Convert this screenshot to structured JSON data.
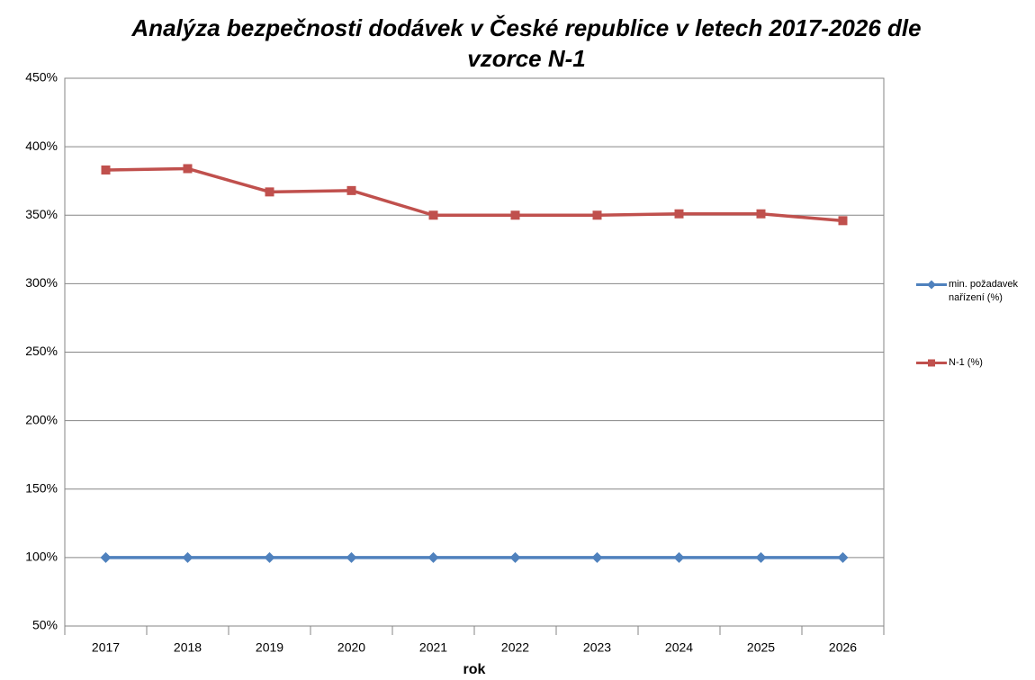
{
  "chart_data": {
    "type": "line",
    "title": "Analýza bezpečnosti dodávek v České republice v letech 2017-2026 dle vzorce N-1",
    "x_label": "rok",
    "categories": [
      "2017",
      "2018",
      "2019",
      "2020",
      "2021",
      "2022",
      "2023",
      "2024",
      "2025",
      "2026"
    ],
    "series": [
      {
        "name": "min. požadavek nařízení (%)",
        "color": "#4f81bd",
        "marker": "diamond",
        "values": [
          100,
          100,
          100,
          100,
          100,
          100,
          100,
          100,
          100,
          100
        ]
      },
      {
        "name": "N-1 (%)",
        "color": "#c0504d",
        "marker": "square",
        "values": [
          383,
          384,
          367,
          368,
          350,
          350,
          350,
          351,
          351,
          346
        ]
      }
    ],
    "ylim": [
      50,
      450
    ],
    "yticks": [
      {
        "value": 50,
        "label": "50%"
      },
      {
        "value": 100,
        "label": "100%"
      },
      {
        "value": 150,
        "label": "150%"
      },
      {
        "value": 200,
        "label": "200%"
      },
      {
        "value": 250,
        "label": "250%"
      },
      {
        "value": 300,
        "label": "300%"
      },
      {
        "value": 350,
        "label": "350%"
      },
      {
        "value": 400,
        "label": "400%"
      },
      {
        "value": 450,
        "label": "450%"
      }
    ],
    "grid": true,
    "legend": "right"
  }
}
